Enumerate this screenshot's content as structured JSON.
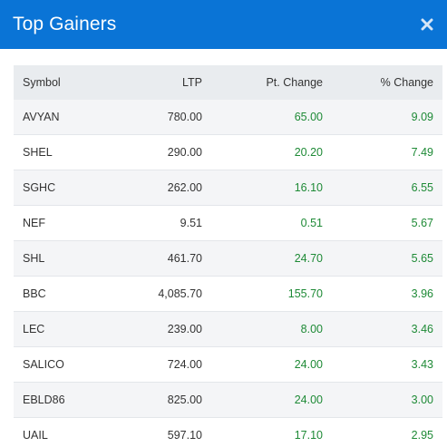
{
  "modal": {
    "title": "Top Gainers",
    "close_icon": "close-icon"
  },
  "colors": {
    "header_bg": "#0a74d6",
    "gain_text": "#1e8a36",
    "table_header_bg": "#e9ecef"
  },
  "table": {
    "headers": {
      "symbol": "Symbol",
      "ltp": "LTP",
      "pt_change": "Pt. Change",
      "pct_change": "% Change"
    },
    "rows": [
      {
        "symbol": "AVYAN",
        "ltp": "780.00",
        "pt_change": "65.00",
        "pct_change": "9.09"
      },
      {
        "symbol": "SHEL",
        "ltp": "290.00",
        "pt_change": "20.20",
        "pct_change": "7.49"
      },
      {
        "symbol": "SGHC",
        "ltp": "262.00",
        "pt_change": "16.10",
        "pct_change": "6.55"
      },
      {
        "symbol": "NEF",
        "ltp": "9.51",
        "pt_change": "0.51",
        "pct_change": "5.67"
      },
      {
        "symbol": "SHL",
        "ltp": "461.70",
        "pt_change": "24.70",
        "pct_change": "5.65"
      },
      {
        "symbol": "BBC",
        "ltp": "4,085.70",
        "pt_change": "155.70",
        "pct_change": "3.96"
      },
      {
        "symbol": "LEC",
        "ltp": "239.00",
        "pt_change": "8.00",
        "pct_change": "3.46"
      },
      {
        "symbol": "SALICO",
        "ltp": "724.00",
        "pt_change": "24.00",
        "pct_change": "3.43"
      },
      {
        "symbol": "EBLD86",
        "ltp": "825.00",
        "pt_change": "24.00",
        "pct_change": "3.00"
      },
      {
        "symbol": "UAIL",
        "ltp": "597.10",
        "pt_change": "17.10",
        "pct_change": "2.95"
      }
    ]
  }
}
